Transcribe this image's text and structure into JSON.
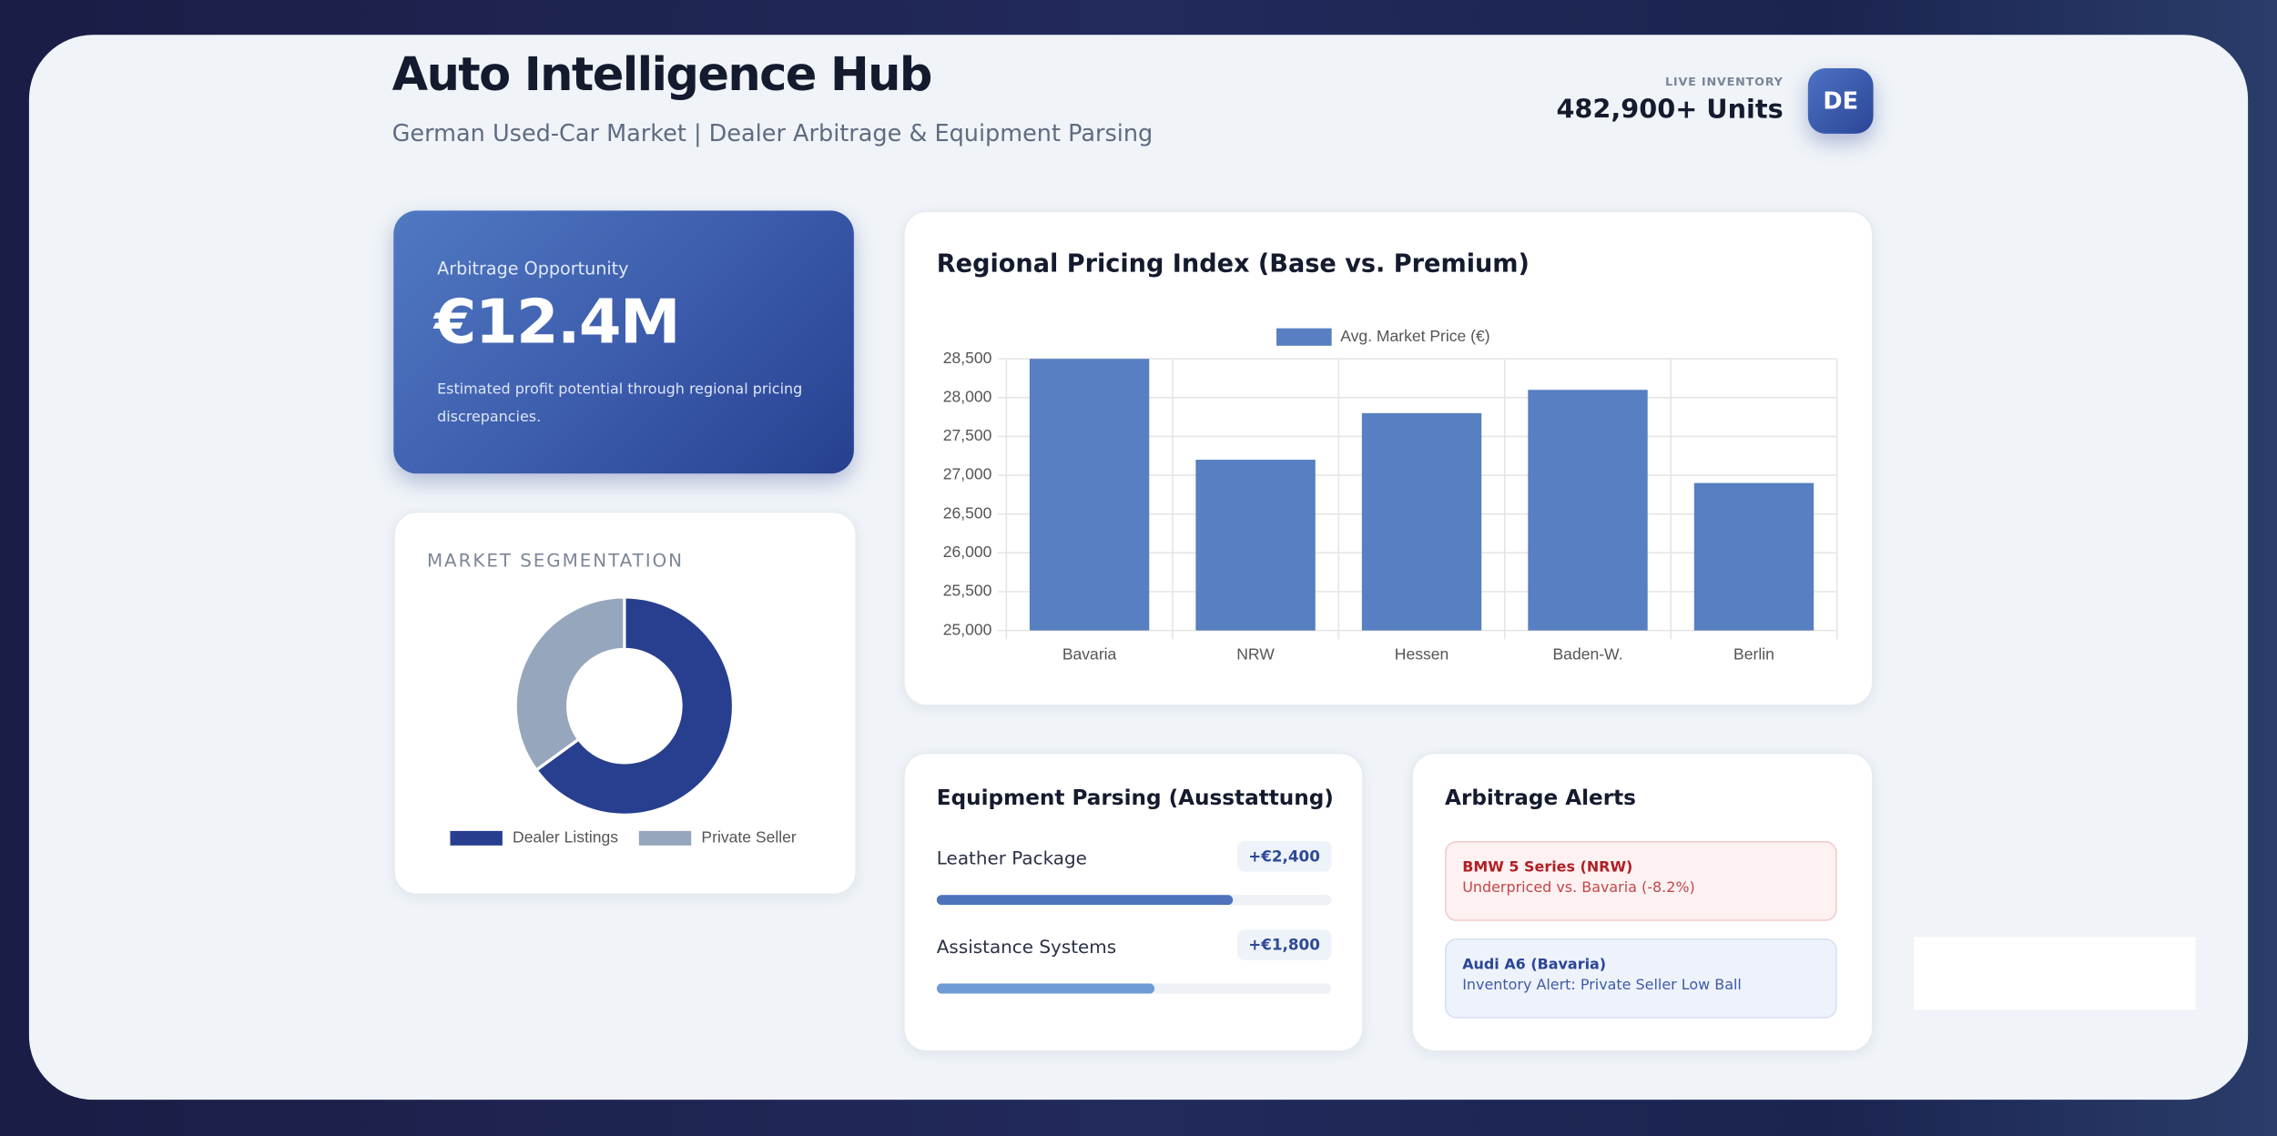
{
  "header": {
    "title": "Auto Intelligence Hub",
    "subtitle": "German Used-Car Market | Dealer Arbitrage & Equipment Parsing",
    "inventory_label": "LIVE INVENTORY",
    "inventory_value": "482,900+ Units",
    "badge": "DE"
  },
  "opportunity": {
    "label": "Arbitrage Opportunity",
    "value": "€12.4M",
    "description": "Estimated profit potential through regional pricing discrepancies."
  },
  "chart_data": [
    {
      "type": "bar",
      "title": "Regional Pricing Index (Base vs. Premium)",
      "categories": [
        "Bavaria",
        "NRW",
        "Hessen",
        "Baden-W.",
        "Berlin"
      ],
      "series": [
        {
          "name": "Avg. Market Price (€)",
          "color": "#577fc1",
          "values": [
            28500,
            27200,
            27800,
            28100,
            26900
          ]
        }
      ],
      "ylim": [
        25000,
        28500
      ],
      "yticks": [
        {
          "value": 25000,
          "label": "25,000"
        },
        {
          "value": 25500,
          "label": "25,500"
        },
        {
          "value": 26000,
          "label": "26,000"
        },
        {
          "value": 26500,
          "label": "26,500"
        },
        {
          "value": 27000,
          "label": "27,000"
        },
        {
          "value": 27500,
          "label": "27,500"
        },
        {
          "value": 28000,
          "label": "28,000"
        },
        {
          "value": 28500,
          "label": "28,500"
        }
      ],
      "grid": true,
      "legend": "top"
    },
    {
      "type": "pie",
      "title": "MARKET SEGMENTATION",
      "categories": [
        "Dealer Listings",
        "Private Seller"
      ],
      "values": [
        65,
        35
      ],
      "colors": [
        "#283f8f",
        "#96a6bc"
      ],
      "donut": true,
      "legend": "bottom"
    }
  ],
  "equipment": {
    "title": "Equipment Parsing (Ausstattung)",
    "items": [
      {
        "name": "Leather Package",
        "premium": "+€2,400",
        "progress": 75,
        "color": "#4f74bd"
      },
      {
        "name": "Assistance Systems",
        "premium": "+€1,800",
        "progress": 55,
        "color": "#6e9ad6"
      }
    ]
  },
  "alerts": {
    "title": "Arbitrage Alerts",
    "items": [
      {
        "title": "BMW 5 Series (NRW)",
        "text": "Underpriced vs. Bavaria (-8.2%)"
      },
      {
        "title": "Audi A6 (Bavaria)",
        "text": "Inventory Alert: Private Seller Low Ball"
      }
    ]
  }
}
